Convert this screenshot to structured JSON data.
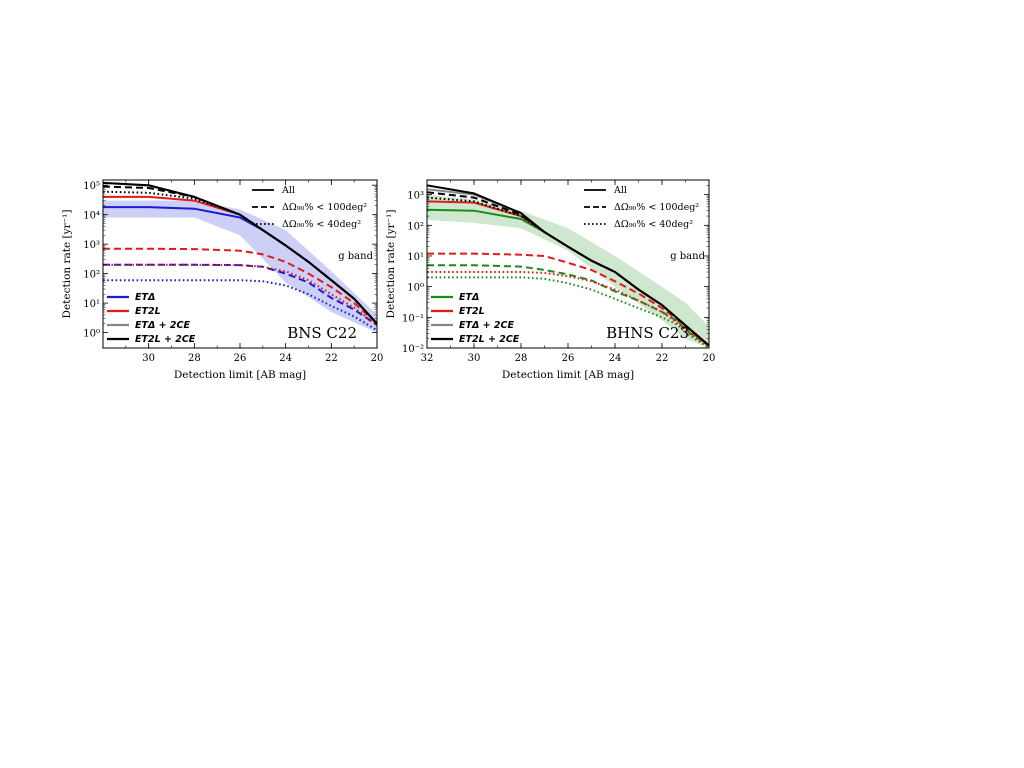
{
  "chart_data": [
    {
      "type": "line",
      "annotation": "BNS C22",
      "band_label": "g band",
      "xlabel": "Detection limit  [AB mag]",
      "ylabel": "Detection rate [yr⁻¹]",
      "xlim": [
        32,
        20
      ],
      "ylim": [
        0.3,
        150000
      ],
      "yscale": "log",
      "xticks": [
        "30",
        "28",
        "26",
        "24",
        "22",
        "20"
      ],
      "yticks": [
        "10⁰",
        "10¹",
        "10²",
        "10³",
        "10⁴",
        "10⁵"
      ],
      "legend_styles": [
        "All",
        "ΔΩ₉₀% < 100deg²",
        "ΔΩ₉₀% < 40deg²"
      ],
      "legend_networks": [
        "ETΔ",
        "ET2L",
        "ETΔ + 2CE",
        "ET2L + 2CE"
      ],
      "shaded_band": {
        "network": "ETΔ",
        "color": "#c8cbf5",
        "x": [
          32,
          28,
          26,
          24,
          22,
          20
        ],
        "upper": [
          30000,
          30000,
          15000,
          3000,
          120,
          4
        ],
        "lower": [
          8000,
          8000,
          2000,
          50,
          5,
          1
        ]
      },
      "series": [
        {
          "network": "ETΔ",
          "style": "All",
          "color": "#1a1ad9",
          "x": [
            32,
            30,
            28,
            26,
            25,
            24,
            23,
            22,
            21,
            20
          ],
          "y": [
            18000,
            18000,
            16000,
            8000,
            3000,
            900,
            250,
            60,
            14,
            2
          ]
        },
        {
          "network": "ETΔ",
          "style": "ΔΩ < 100deg²",
          "color": "#1a1ad9",
          "x": [
            32,
            30,
            28,
            26,
            25,
            24,
            23,
            22,
            21,
            20
          ],
          "y": [
            200,
            200,
            200,
            195,
            170,
            100,
            50,
            15,
            6,
            1.8
          ]
        },
        {
          "network": "ETΔ",
          "style": "ΔΩ < 40deg²",
          "color": "#1a1ad9",
          "x": [
            32,
            30,
            28,
            26,
            25,
            24,
            23,
            22,
            21,
            20
          ],
          "y": [
            60,
            60,
            60,
            60,
            55,
            40,
            20,
            8,
            3.5,
            1.2
          ]
        },
        {
          "network": "ET2L",
          "style": "All",
          "color": "#e21a1a",
          "x": [
            32,
            30,
            28,
            26,
            25,
            24,
            23,
            22,
            21,
            20
          ],
          "y": [
            40000,
            40000,
            30000,
            10000,
            3000,
            900,
            250,
            60,
            14,
            2
          ]
        },
        {
          "network": "ET2L",
          "style": "ΔΩ < 100deg²",
          "color": "#e21a1a",
          "x": [
            32,
            30,
            28,
            26,
            25,
            24,
            23,
            22,
            21,
            20
          ],
          "y": [
            700,
            700,
            680,
            600,
            450,
            250,
            100,
            35,
            10,
            2
          ]
        },
        {
          "network": "ET2L",
          "style": "ΔΩ < 40deg²",
          "color": "#e21a1a",
          "x": [
            32,
            30,
            28,
            26,
            25,
            24,
            23,
            22,
            21,
            20
          ],
          "y": [
            200,
            200,
            200,
            195,
            170,
            120,
            60,
            20,
            7,
            1.8
          ]
        },
        {
          "network": "ETΔ + 2CE",
          "style": "All",
          "color": "#888888",
          "x": [
            32,
            30,
            28,
            26,
            25,
            24,
            23,
            22,
            21,
            20
          ],
          "y": [
            120000,
            95000,
            40000,
            10000,
            3000,
            900,
            250,
            60,
            14,
            2
          ]
        },
        {
          "network": "ET2L + 2CE",
          "style": "All",
          "color": "#000000",
          "x": [
            32,
            30,
            28,
            26,
            25,
            24,
            23,
            22,
            21,
            20
          ],
          "y": [
            120000,
            100000,
            40000,
            10000,
            3000,
            900,
            250,
            60,
            14,
            2
          ]
        },
        {
          "network": "ET2L + 2CE",
          "style": "ΔΩ < 100deg²",
          "color": "#000000",
          "x": [
            32,
            30,
            28,
            26,
            25,
            24,
            23,
            22,
            21,
            20
          ],
          "y": [
            90000,
            80000,
            40000,
            10000,
            3000,
            900,
            250,
            60,
            14,
            2
          ]
        },
        {
          "network": "ET2L + 2CE",
          "style": "ΔΩ < 40deg²",
          "color": "#000000",
          "x": [
            32,
            30,
            28,
            26,
            25,
            24,
            23,
            22,
            21,
            20
          ],
          "y": [
            60000,
            55000,
            35000,
            10000,
            3000,
            900,
            250,
            60,
            14,
            2
          ]
        }
      ]
    },
    {
      "type": "line",
      "annotation": "BHNS C23",
      "band_label": "g band",
      "xlabel": "Detection limit  [AB mag]",
      "ylabel": "Detection rate [yr⁻¹]",
      "xlim": [
        32,
        20
      ],
      "ylim": [
        0.01,
        3000
      ],
      "yscale": "log",
      "xticks": [
        "32",
        "30",
        "28",
        "26",
        "24",
        "22",
        "20"
      ],
      "yticks": [
        "10⁻²",
        "10⁻¹",
        "10⁰",
        "10¹",
        "10²",
        "10³"
      ],
      "legend_styles": [
        "All",
        "ΔΩ₉₀% < 100deg²",
        "ΔΩ₉₀% < 40deg²"
      ],
      "legend_networks": [
        "ETΔ",
        "ET2L",
        "ETΔ + 2CE",
        "ET2L + 2CE"
      ],
      "shaded_band": {
        "network": "ETΔ",
        "color": "#c9e4c9",
        "x": [
          32,
          30,
          28,
          26,
          24,
          22,
          21,
          20
        ],
        "upper": [
          1000,
          700,
          300,
          80,
          10,
          1,
          0.3,
          0.05
        ],
        "lower": [
          150,
          120,
          80,
          15,
          1,
          0.08,
          0.02,
          0.01
        ]
      },
      "series": [
        {
          "network": "ETΔ",
          "style": "All",
          "color": "#1a8c1a",
          "x": [
            32,
            30,
            28,
            27,
            26,
            25,
            24,
            23,
            22,
            21.4,
            20.8,
            20
          ],
          "y": [
            320,
            300,
            160,
            60,
            20,
            7,
            3,
            0.8,
            0.25,
            0.1,
            0.04,
            0.012
          ]
        },
        {
          "network": "ETΔ",
          "style": "ΔΩ < 100deg²",
          "color": "#1a8c1a",
          "x": [
            32,
            30,
            28,
            27,
            26,
            25,
            24,
            23,
            22,
            21.4,
            20.8,
            20
          ],
          "y": [
            5,
            5,
            4.5,
            3.5,
            2.5,
            1.6,
            0.7,
            0.35,
            0.15,
            0.08,
            0.03,
            0.012
          ]
        },
        {
          "network": "ETΔ",
          "style": "ΔΩ < 40deg²",
          "color": "#1a8c1a",
          "x": [
            32,
            30,
            28,
            27,
            26,
            25,
            24,
            23,
            22,
            21.4,
            20.8,
            20
          ],
          "y": [
            2,
            2,
            2,
            1.8,
            1.3,
            0.8,
            0.4,
            0.2,
            0.1,
            0.06,
            0.025,
            0.01
          ]
        },
        {
          "network": "ET2L",
          "style": "All",
          "color": "#e21a1a",
          "x": [
            32,
            30,
            28,
            27,
            26,
            25,
            24,
            23,
            22,
            21.4,
            20.8,
            20
          ],
          "y": [
            600,
            550,
            200,
            60,
            20,
            7,
            3,
            0.8,
            0.25,
            0.1,
            0.04,
            0.012
          ]
        },
        {
          "network": "ET2L",
          "style": "ΔΩ < 100deg²",
          "color": "#e21a1a",
          "x": [
            32,
            30,
            28,
            27,
            26,
            25,
            24,
            23,
            22,
            21.4,
            20.8,
            20
          ],
          "y": [
            12,
            12,
            11,
            10,
            6,
            3.5,
            1.5,
            0.6,
            0.2,
            0.09,
            0.035,
            0.012
          ]
        },
        {
          "network": "ET2L",
          "style": "ΔΩ < 40deg²",
          "color": "#e21a1a",
          "x": [
            32,
            30,
            28,
            27,
            26,
            25,
            24,
            23,
            22,
            21.4,
            20.8,
            20
          ],
          "y": [
            3,
            3,
            3,
            2.8,
            2.2,
            1.5,
            0.8,
            0.35,
            0.15,
            0.07,
            0.03,
            0.011
          ]
        },
        {
          "network": "ETΔ + 2CE",
          "style": "All",
          "color": "#888888",
          "x": [
            32,
            30,
            28,
            27,
            26,
            25,
            24,
            23,
            22,
            21.4,
            20.8,
            20
          ],
          "y": [
            1500,
            1000,
            250,
            60,
            20,
            7,
            3,
            0.8,
            0.25,
            0.1,
            0.04,
            0.012
          ]
        },
        {
          "network": "ET2L + 2CE",
          "style": "All",
          "color": "#000000",
          "x": [
            32,
            30,
            28,
            27,
            26,
            25,
            24,
            23,
            22,
            21.4,
            20.8,
            20
          ],
          "y": [
            2000,
            1100,
            250,
            60,
            20,
            7,
            3,
            0.8,
            0.25,
            0.1,
            0.04,
            0.012
          ]
        },
        {
          "network": "ET2L + 2CE",
          "style": "ΔΩ < 100deg²",
          "color": "#000000",
          "x": [
            32,
            30,
            28,
            27,
            26,
            25,
            24,
            23,
            22,
            21.4,
            20.8,
            20
          ],
          "y": [
            1200,
            800,
            220,
            60,
            20,
            7,
            3,
            0.8,
            0.25,
            0.1,
            0.04,
            0.012
          ]
        },
        {
          "network": "ET2L + 2CE",
          "style": "ΔΩ < 40deg²",
          "color": "#000000",
          "x": [
            32,
            30,
            28,
            27,
            26,
            25,
            24,
            23,
            22,
            21.4,
            20.8,
            20
          ],
          "y": [
            800,
            600,
            200,
            60,
            20,
            7,
            3,
            0.8,
            0.25,
            0.1,
            0.04,
            0.012
          ]
        }
      ]
    }
  ]
}
